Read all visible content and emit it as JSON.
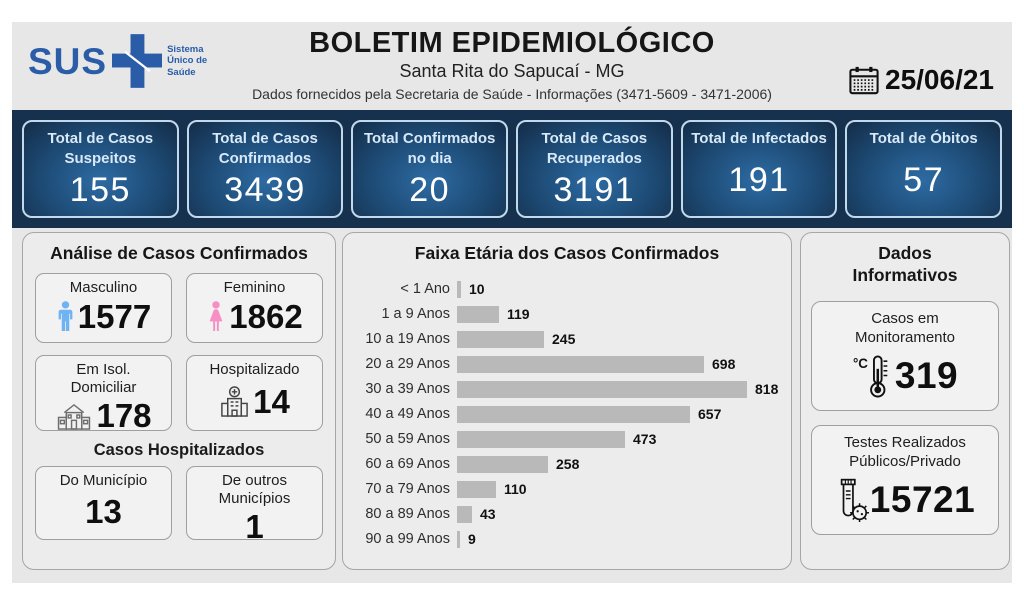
{
  "header": {
    "logo": {
      "text": "SUS",
      "tagline": "Sistema Único de Saúde"
    },
    "title": "BOLETIM EPIDEMIOLÓGICO",
    "subtitle": "Santa Rita do Sapucaí - MG",
    "info_line": "Dados fornecidos pela Secretaria de Saúde - Informações (3471-5609 - 3471-2006)",
    "date": "25/06/21"
  },
  "summary_cards": [
    {
      "label": "Total de Casos Suspeitos",
      "value": "155"
    },
    {
      "label": "Total de Casos Confirmados",
      "value": "3439"
    },
    {
      "label": "Total Confirmados no dia",
      "value": "20"
    },
    {
      "label": "Total de Casos Recuperados",
      "value": "3191"
    },
    {
      "label": "Total de Infectados",
      "value": "191"
    },
    {
      "label": "Total de Óbitos",
      "value": "57"
    }
  ],
  "analysis": {
    "title": "Análise de Casos Confirmados",
    "male": {
      "label": "Masculino",
      "value": "1577"
    },
    "female": {
      "label": "Feminino",
      "value": "1862"
    },
    "isolation": {
      "label": "Em Isol. Domiciliar",
      "value": "178"
    },
    "hospitalized": {
      "label": "Hospitalizado",
      "value": "14"
    },
    "hospitalized_cases": {
      "title": "Casos Hospitalizados",
      "municipality": {
        "label": "Do Município",
        "value": "13"
      },
      "other": {
        "label": "De outros Municípios",
        "value": "1"
      }
    }
  },
  "chart_data": {
    "type": "bar",
    "orientation": "horizontal",
    "title": "Faixa Etária dos Casos Confirmados",
    "categories": [
      "< 1 Ano",
      "1 a 9 Anos",
      "10 a 19 Anos",
      "20 a 29 Anos",
      "30 a 39 Anos",
      "40 a 49 Anos",
      "50 a 59 Anos",
      "60 a 69 Anos",
      "70 a 79 Anos",
      "80 a 89 Anos",
      "90 a 99 Anos"
    ],
    "values": [
      10,
      119,
      245,
      698,
      818,
      657,
      473,
      258,
      110,
      43,
      9
    ],
    "xlim": [
      0,
      818
    ],
    "grid": false,
    "legend": "none",
    "value_labels": true,
    "bar_color": "#b9b9b9"
  },
  "info_panel": {
    "title": "Dados Informativos",
    "monitoring": {
      "label": "Casos em Monitoramento",
      "value": "319"
    },
    "tests": {
      "label": "Testes Realizados Públicos/Privado",
      "value": "15721"
    }
  },
  "icons": {
    "logo": "sus-cross-icon",
    "date": "calendar-icon",
    "male": "male-person-icon",
    "female": "female-person-icon",
    "isolation": "house-icon",
    "hospitalized": "hospital-icon",
    "monitoring": "thermometer-icon",
    "tests": "test-tube-virus-icon"
  },
  "colors": {
    "sus_blue": "#2b5ca8",
    "band_background": "#16314e",
    "card_gradient_center": "#2d6ba3",
    "card_border": "#c2d8ec",
    "male_icon": "#6fb3f2",
    "female_icon": "#f78fc5",
    "bar_gray": "#b9b9b9",
    "sheet_gray": "#e7e7e7"
  }
}
